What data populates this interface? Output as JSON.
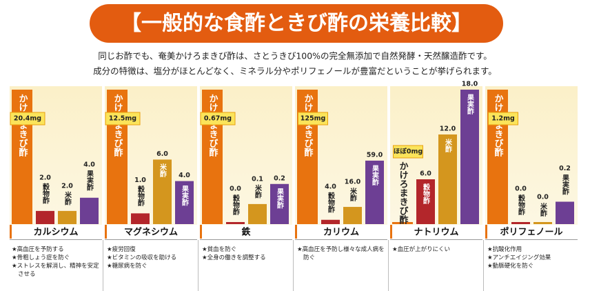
{
  "header": {
    "title": "【一般的な食酢ときび酢の栄養比較】",
    "lines": [
      "同じお酢でも、奄美かけろまきび酢は、さとうきび100%の完全無添加で自然発酵・天然醸造酢です。",
      "成分の特徴は、塩分がほとんどなく、ミネラル分やポリフェノールが豊富だということが挙げられます。"
    ]
  },
  "chart_data": [
    {
      "type": "bar",
      "title": "カルシウム",
      "categories": [
        "かけろまきび酢",
        "穀物酢",
        "米酢",
        "果実酢"
      ],
      "values": [
        20.4,
        2.0,
        2.0,
        4.0
      ],
      "value_labels": [
        "20.4mg",
        "2.0",
        "2.0",
        "4.0"
      ],
      "colors": [
        "#e8730f",
        "#b3262b",
        "#d4961e",
        "#6d3f94"
      ],
      "notes": [
        "★高血圧を予防する",
        "★骨粗しょう症を防ぐ",
        "★ストレスを解消し、精神を安定させる"
      ]
    },
    {
      "type": "bar",
      "title": "マグネシウム",
      "categories": [
        "かけろまきび酢",
        "穀物酢",
        "米酢",
        "果実酢"
      ],
      "values": [
        12.5,
        1.0,
        6.0,
        4.0
      ],
      "value_labels": [
        "12.5mg",
        "1.0",
        "6.0",
        "4.0"
      ],
      "colors": [
        "#e8730f",
        "#b3262b",
        "#d4961e",
        "#6d3f94"
      ],
      "notes": [
        "★疲労回復",
        "★ビタミンの吸収を助ける",
        "★糖尿病を防ぐ"
      ]
    },
    {
      "type": "bar",
      "title": "鉄",
      "categories": [
        "かけろまきび酢",
        "穀物酢",
        "米酢",
        "果実酢"
      ],
      "values": [
        0.67,
        0.0,
        0.1,
        0.2
      ],
      "value_labels": [
        "0.67mg",
        "0.0",
        "0.1",
        "0.2"
      ],
      "colors": [
        "#e8730f",
        "#b3262b",
        "#d4961e",
        "#6d3f94"
      ],
      "notes": [
        "★貧血を防ぐ",
        "★全身の働きを調整する"
      ]
    },
    {
      "type": "bar",
      "title": "カリウム",
      "categories": [
        "かけろまきび酢",
        "穀物酢",
        "米酢",
        "果実酢"
      ],
      "values": [
        125,
        4.0,
        16.0,
        59.0
      ],
      "value_labels": [
        "125mg",
        "4.0",
        "16.0",
        "59.0"
      ],
      "colors": [
        "#e8730f",
        "#b3262b",
        "#d4961e",
        "#6d3f94"
      ],
      "notes": [
        "★高血圧を予防し様々な成人病を防ぐ"
      ]
    },
    {
      "type": "bar",
      "title": "ナトリウム",
      "categories": [
        "かけろまきび酢",
        "穀物酢",
        "米酢",
        "果実酢"
      ],
      "values": [
        0,
        6.0,
        12.0,
        18.0
      ],
      "value_labels": [
        "ほぼ0mg",
        "6.0",
        "12.0",
        "18.0"
      ],
      "colors": [
        "#e8730f",
        "#b3262b",
        "#d4961e",
        "#6d3f94"
      ],
      "notes": [
        "★血圧が上がりにくい"
      ]
    },
    {
      "type": "bar",
      "title": "ポリフェノール",
      "categories": [
        "かけろまきび酢",
        "穀物酢",
        "米酢",
        "果実酢"
      ],
      "values": [
        1.2,
        0.0,
        0.0,
        0.2
      ],
      "value_labels": [
        "1.2mg",
        "0.0",
        "0.0",
        "0.2"
      ],
      "colors": [
        "#e8730f",
        "#b3262b",
        "#d4961e",
        "#6d3f94"
      ],
      "notes": [
        "★抗酸化作用",
        "★アンチエイジング効果",
        "★動脈硬化を防ぐ"
      ]
    }
  ]
}
